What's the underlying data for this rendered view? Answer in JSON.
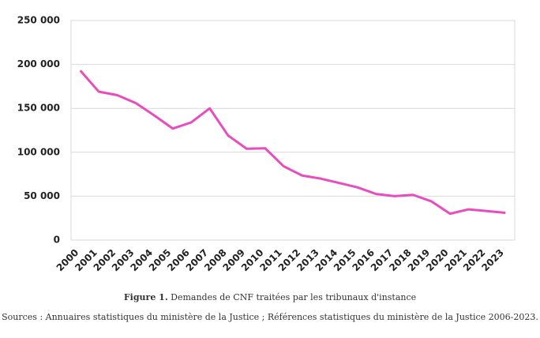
{
  "chart_data": {
    "type": "line",
    "categories": [
      "2000",
      "2001",
      "2002",
      "2003",
      "2004",
      "2005",
      "2006",
      "2007",
      "2008",
      "2009",
      "2010",
      "2011",
      "2012",
      "2013",
      "2014",
      "2015",
      "2016",
      "2017",
      "2018",
      "2019",
      "2020",
      "2021",
      "2022",
      "2023"
    ],
    "series": [
      {
        "color": "#e84cbd",
        "values": [
          193000,
          169000,
          165000,
          156000,
          142000,
          127000,
          134000,
          150000,
          119000,
          104000,
          104500,
          84000,
          73500,
          70000,
          65000,
          60000,
          52500,
          50000,
          51500,
          44000,
          30000,
          35000,
          33000,
          31000
        ]
      }
    ],
    "ylim": [
      0,
      250000
    ],
    "yticks": [
      0,
      {
        "value": 50000,
        "label": "50 000"
      },
      {
        "value": 100000,
        "label": "100 000"
      },
      {
        "value": 150000,
        "label": "150 000"
      },
      {
        "value": 200000,
        "label": "200 000"
      },
      {
        "value": 250000,
        "label": "250 000"
      }
    ],
    "grid": true
  },
  "caption": {
    "label": "Figure 1.",
    "text": "Demandes de CNF traitées par les tribunaux d'instance",
    "source": "Sources : Annuaires statistiques du ministère de la Justice ; Références statistiques du ministère de la Justice 2006-2023."
  }
}
